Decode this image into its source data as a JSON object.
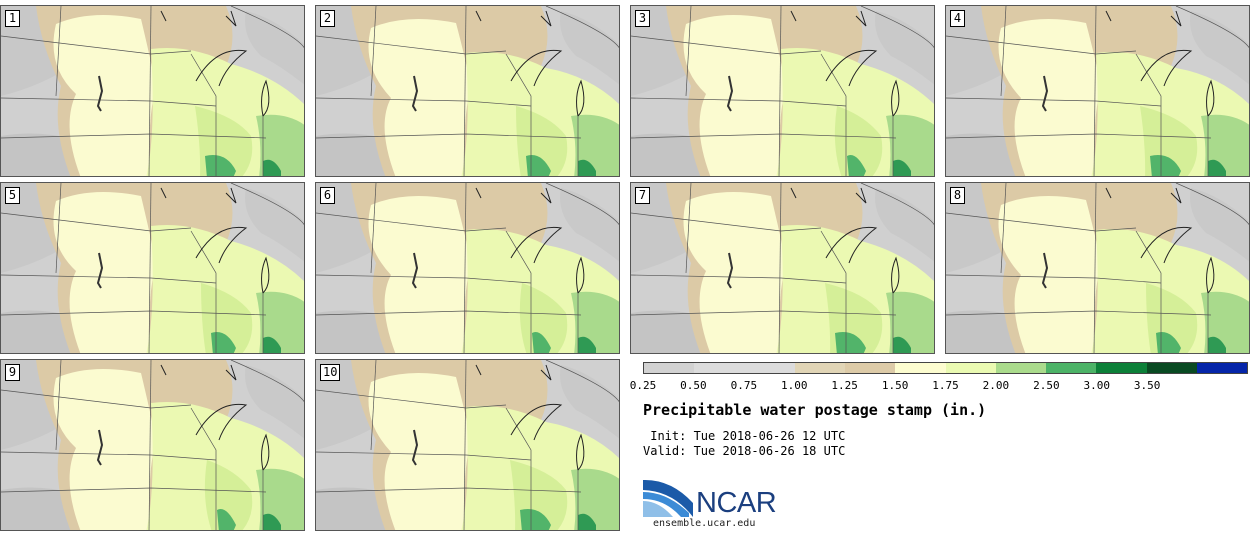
{
  "title": "Precipitable water postage stamp (in.)",
  "init": " Init: Tue 2018-06-26 12 UTC",
  "valid": "Valid: Tue 2018-06-26 18 UTC",
  "logo": {
    "name": "NCAR",
    "url": "ensemble.ucar.edu"
  },
  "colorbar": {
    "ticks": [
      "0.25",
      "0.50",
      "0.75",
      "1.00",
      "1.25",
      "1.50",
      "1.75",
      "2.00",
      "2.50",
      "3.00",
      "3.50"
    ],
    "colors": [
      "#d2d2d2",
      "#dcdcdc",
      "#dcdcdc",
      "#e1d5b6",
      "#ddcba8",
      "#fdfdd0",
      "#eafab2",
      "#aadb8c",
      "#4cb367",
      "#0c8038",
      "#094a22",
      "#0525a9"
    ]
  },
  "members": [
    {
      "label": "1"
    },
    {
      "label": "2"
    },
    {
      "label": "3"
    },
    {
      "label": "4"
    },
    {
      "label": "5"
    },
    {
      "label": "6"
    },
    {
      "label": "7"
    },
    {
      "label": "8"
    },
    {
      "label": "9"
    },
    {
      "label": "10"
    }
  ]
}
